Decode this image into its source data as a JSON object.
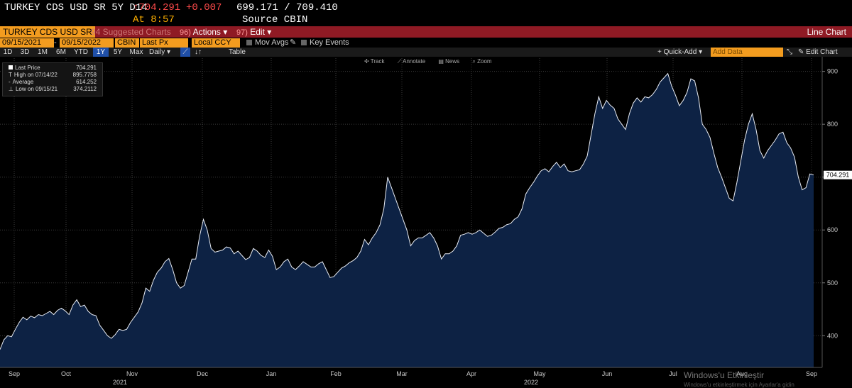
{
  "header": {
    "security": "TURKEY CDS USD SR 5Y D14",
    "last_price": "↑704.291",
    "change": "+0.007",
    "bid_ask": "699.171 / 709.410",
    "time": "At 8:57",
    "source": "Source CBIN"
  },
  "menubar": {
    "ticker": "TURKEY CDS USD SR",
    "suggested_charts": "94 Suggested Charts",
    "actions_num": "96)",
    "actions": "Actions ▾",
    "edit_num": "97)",
    "edit": "Edit ▾",
    "chart_type": "Line Chart"
  },
  "toolbar2": {
    "start_date": "09/15/2021",
    "end_date": "09/15/2022",
    "source": "CBIN",
    "field": "Last Px",
    "currency": "Local CCY",
    "mov_avgs": "Mov Avgs",
    "key_events": "Key Events"
  },
  "toolbar3": {
    "ranges": [
      "1D",
      "3D",
      "1M",
      "6M",
      "YTD",
      "1Y",
      "5Y",
      "Max"
    ],
    "selected_range": "1Y",
    "frequency": "Daily ▾",
    "table": "Table",
    "quick_add": "+ Quick-Add ▾",
    "add_data_placeholder": "Add Data",
    "edit_chart": "Edit Chart"
  },
  "chart_tools": {
    "track": "Track",
    "annotate": "Annotate",
    "news": "News",
    "zoom": "Zoom"
  },
  "legend": {
    "rows": [
      {
        "label": "Last Price",
        "value": "704.291"
      },
      {
        "label": "High on 07/14/22",
        "value": "895.7758"
      },
      {
        "label": "Average",
        "value": "614.252"
      },
      {
        "label": "Low on 09/15/21",
        "value": "374.2112"
      }
    ]
  },
  "watermark": {
    "line1": "Windows'u Etkinleştir",
    "line2": "Windows'u etkinleştirmek için Ayarlar'a gidin"
  },
  "colors": {
    "area_fill": "#0d2244",
    "line": "#e8ecf4",
    "grid": "#3a3a3a",
    "accent_orange": "#f39c1f",
    "menu_red": "#8f1a24"
  },
  "chart_data": {
    "type": "area",
    "ylim": [
      340,
      925
    ],
    "yticks": [
      400,
      500,
      600,
      700,
      800,
      900
    ],
    "month_labels": [
      "Sep",
      "Oct",
      "Nov",
      "Dec",
      "Jan",
      "Feb",
      "Mar",
      "Apr",
      "May",
      "Jun",
      "Jul",
      "Aug",
      "Sep"
    ],
    "year_labels": [
      "2021",
      "2022"
    ],
    "last_value_label": "704.291",
    "series": [
      {
        "values": [
          374,
          392,
          400,
          398,
          412,
          425,
          435,
          430,
          437,
          434,
          440,
          438,
          442,
          446,
          440,
          448,
          452,
          447,
          440,
          458,
          468,
          455,
          458,
          446,
          440,
          438,
          420,
          410,
          400,
          395,
          402,
          412,
          410,
          412,
          425,
          435,
          445,
          462,
          490,
          484,
          505,
          520,
          528,
          540,
          546,
          525,
          500,
          490,
          495,
          520,
          545,
          545,
          588,
          620,
          600,
          565,
          558,
          560,
          562,
          568,
          566,
          555,
          560,
          552,
          544,
          548,
          565,
          560,
          552,
          548,
          562,
          550,
          525,
          530,
          540,
          545,
          530,
          525,
          532,
          540,
          535,
          530,
          530,
          536,
          540,
          525,
          510,
          512,
          520,
          528,
          532,
          538,
          542,
          548,
          560,
          582,
          572,
          585,
          595,
          610,
          640,
          700,
          680,
          660,
          640,
          620,
          600,
          570,
          580,
          585,
          585,
          590,
          595,
          585,
          570,
          545,
          555,
          555,
          560,
          570,
          590,
          592,
          595,
          592,
          595,
          600,
          594,
          588,
          590,
          596,
          603,
          605,
          610,
          612,
          620,
          625,
          640,
          668,
          680,
          690,
          702,
          712,
          716,
          710,
          720,
          728,
          718,
          725,
          712,
          710,
          712,
          714,
          725,
          740,
          780,
          820,
          852,
          830,
          845,
          836,
          830,
          810,
          800,
          790,
          820,
          840,
          850,
          842,
          852,
          850,
          856,
          866,
          880,
          888,
          896,
          872,
          855,
          835,
          845,
          860,
          886,
          882,
          850,
          800,
          790,
          775,
          745,
          718,
          700,
          680,
          660,
          655,
          690,
          730,
          770,
          800,
          820,
          790,
          750,
          736,
          750,
          760,
          770,
          782,
          785,
          765,
          755,
          738,
          700,
          676,
          680,
          706,
          704
        ]
      }
    ]
  }
}
